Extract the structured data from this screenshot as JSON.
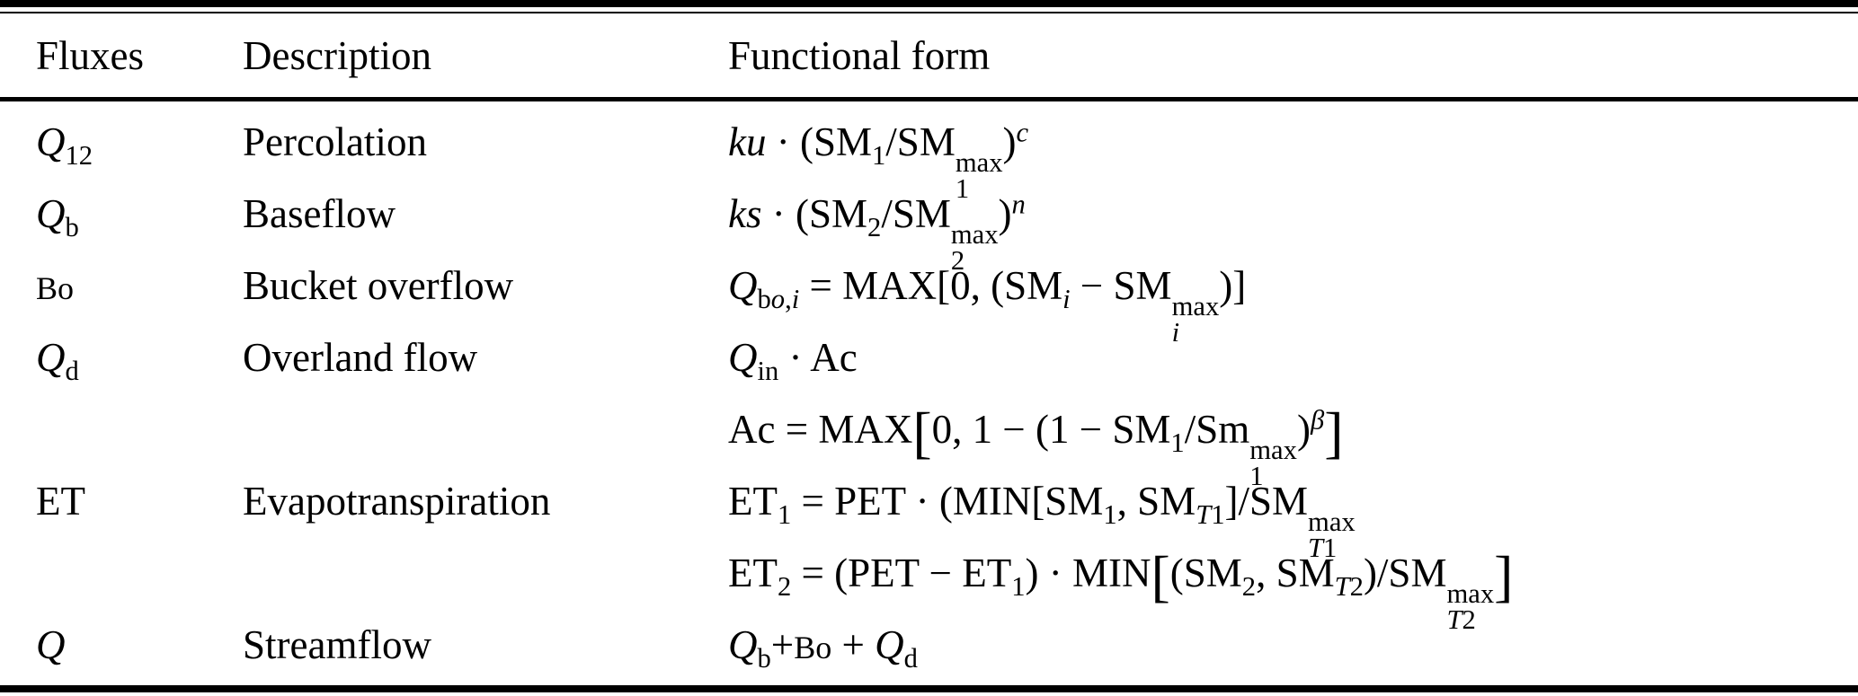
{
  "colors": {
    "background": "#ffffff",
    "text": "#000000",
    "rule": "#000000"
  },
  "table": {
    "columns": [
      {
        "label": "Fluxes"
      },
      {
        "label": "Description"
      },
      {
        "label": "Functional form"
      }
    ],
    "rows": [
      {
        "flux": "*Q*_{12}",
        "description": "Percolation",
        "forms": [
          "*ku* · (SM_{1}/SM^{max}_{1})^{*c*}"
        ]
      },
      {
        "flux": "*Q*_{b}",
        "description": "Baseflow",
        "forms": [
          "*ks* · (SM_{2}/SM^{max}_{2})^{*n*}"
        ]
      },
      {
        "flux": "%{Bo}",
        "description": "Bucket overflow",
        "forms": [
          "*Q*_{b*o*,*i*} = MAX[0, (SM_{*i*} − SM^{max}_{*i*})]"
        ]
      },
      {
        "flux": "*Q*_{d}",
        "description": "Overland flow",
        "forms": [
          "*Q*_{in} · Ac",
          "Ac = MAX⟦0, 1 − (1 − SM_{1}/Sm^{max}_{1})^{*β*}⟧"
        ]
      },
      {
        "flux": "ET",
        "description": "Evapotranspiration",
        "forms": [
          "ET_{1} = PET · (MIN[SM_{1}, SM_{*T*1}]/SM^{max}_{*T*1}",
          "ET_{2} = (PET − ET_{1}) · MIN⟦(SM_{2}, SM_{*T*2})/SM^{max}_{*T*2}⟧"
        ]
      },
      {
        "flux": "*Q*",
        "description": "Streamflow",
        "forms": [
          "*Q*_{b}+%{Bo} + *Q*_{d}"
        ]
      }
    ]
  }
}
